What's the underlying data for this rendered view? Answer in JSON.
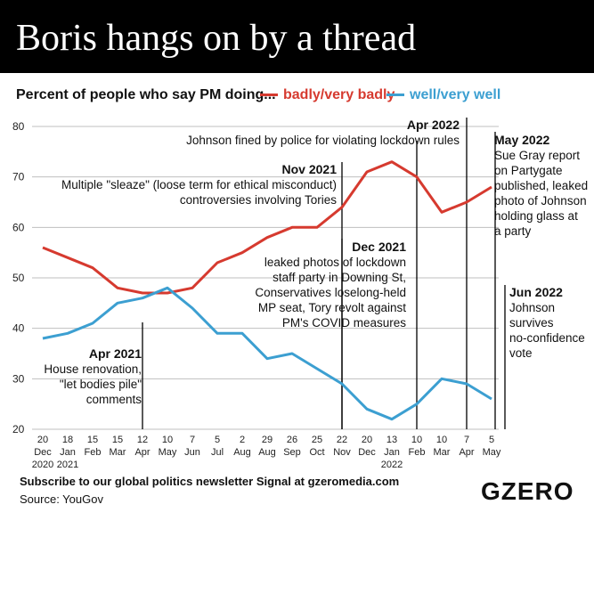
{
  "header": {
    "title": "Boris hangs on by a thread"
  },
  "legend": {
    "prefix": "Percent of people who say PM doing...",
    "badly_label": "badly/very badly",
    "well_label": "well/very well",
    "badly_color": "#d63a2f",
    "well_color": "#3c9fd1"
  },
  "footer": {
    "subscribe": "Subscribe to our global politics newsletter Signal at gzeromedia.com",
    "source": "Source: YouGov",
    "brand": "GZERO"
  },
  "chart_data": {
    "type": "line",
    "ylim": [
      20,
      80
    ],
    "yticks": [
      20,
      30,
      40,
      50,
      60,
      70,
      80
    ],
    "grid": true,
    "x_ticks": [
      [
        "20",
        "Dec",
        "2020"
      ],
      [
        "18",
        "Jan",
        "2021"
      ],
      [
        "15",
        "Feb"
      ],
      [
        "15",
        "Mar"
      ],
      [
        "12",
        "Apr"
      ],
      [
        "10",
        "May"
      ],
      [
        "7",
        "Jun"
      ],
      [
        "5",
        "Jul"
      ],
      [
        "2",
        "Aug"
      ],
      [
        "29",
        "Aug"
      ],
      [
        "26",
        "Sep"
      ],
      [
        "25",
        "Oct"
      ],
      [
        "22",
        "Nov"
      ],
      [
        "20",
        "Dec"
      ],
      [
        "13",
        "Jan",
        "2022"
      ],
      [
        "10",
        "Feb"
      ],
      [
        "10",
        "Mar"
      ],
      [
        "7",
        "Apr"
      ],
      [
        "5",
        "May"
      ]
    ],
    "series": [
      {
        "name": "badly/very badly",
        "color": "#d63a2f",
        "values": [
          56,
          54,
          52,
          48,
          47,
          47,
          48,
          53,
          55,
          58,
          60,
          60,
          64,
          71,
          73,
          70,
          63,
          65,
          68
        ]
      },
      {
        "name": "well/very well",
        "color": "#3c9fd1",
        "values": [
          38,
          39,
          41,
          45,
          46,
          48,
          44,
          39,
          39,
          34,
          35,
          32,
          29,
          24,
          22,
          25,
          30,
          29,
          26
        ]
      }
    ],
    "events": [
      {
        "x": 4,
        "title": "Apr 2021",
        "lines": [
          "House renovation,",
          "\"let bodies pile\"",
          "comments"
        ]
      },
      {
        "x": 12,
        "title": "Nov 2021",
        "lines": [
          "Multiple \"sleaze\" (loose term for ethical misconduct)",
          "controversies involving Tories"
        ]
      },
      {
        "x": 12,
        "title": "Dec 2021",
        "lines": [
          "leaked photos of lockdown",
          "staff party in Downing St,",
          "Conservatives loselong-held",
          "MP seat, Tory revolt against",
          "PM's COVID measures"
        ]
      },
      {
        "x": 15,
        "title": "",
        "lines": []
      },
      {
        "x": 17,
        "title": "Apr 2022",
        "lines": [
          "Johnson fined by police for violating lockdown rules"
        ]
      },
      {
        "x": 18,
        "title": "May 2022",
        "lines": [
          "Sue Gray report",
          "on Partygate",
          "published, leaked",
          "photo of Johnson",
          "holding glass at",
          "a party"
        ]
      },
      {
        "x": 18,
        "title": "Jun 2022",
        "lines": [
          "Johnson",
          "survives",
          "no-confidence",
          "vote"
        ]
      }
    ]
  }
}
